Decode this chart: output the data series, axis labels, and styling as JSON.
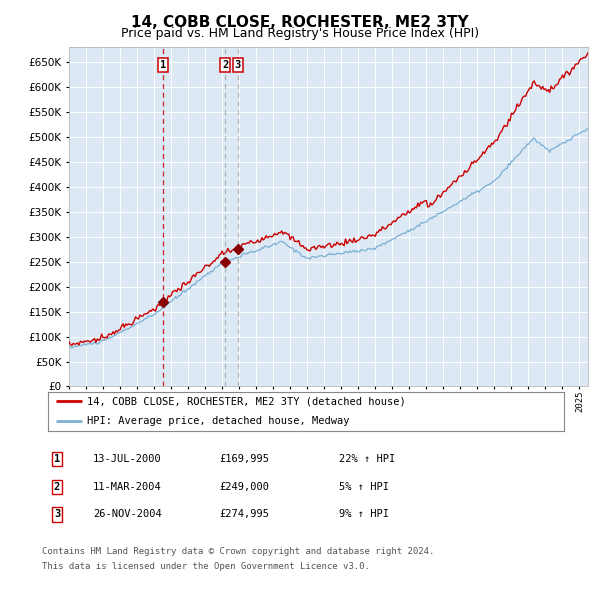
{
  "title": "14, COBB CLOSE, ROCHESTER, ME2 3TY",
  "subtitle": "Price paid vs. HM Land Registry's House Price Index (HPI)",
  "title_fontsize": 11,
  "subtitle_fontsize": 9,
  "background_color": "#dce9f5",
  "fig_background": "#ffffff",
  "grid_color": "#ffffff",
  "red_line_color": "#cc0000",
  "blue_line_color": "#7bafd4",
  "sale_marker_color": "#880000",
  "vline1_color": "#cc0000",
  "vline2_color": "#999999",
  "ylim": [
    0,
    680000
  ],
  "yticks": [
    0,
    50000,
    100000,
    150000,
    200000,
    250000,
    300000,
    350000,
    400000,
    450000,
    500000,
    550000,
    600000,
    650000
  ],
  "xlim_start": 1995.0,
  "xlim_end": 2025.5,
  "sale1_x": 2000.54,
  "sale1_y": 169995,
  "sale2_x": 2004.19,
  "sale2_y": 249000,
  "sale3_x": 2004.91,
  "sale3_y": 274995,
  "legend_line1": "14, COBB CLOSE, ROCHESTER, ME2 3TY (detached house)",
  "legend_line2": "HPI: Average price, detached house, Medway",
  "table_rows": [
    [
      "1",
      "13-JUL-2000",
      "£169,995",
      "22% ↑ HPI"
    ],
    [
      "2",
      "11-MAR-2004",
      "£249,000",
      "5% ↑ HPI"
    ],
    [
      "3",
      "26-NOV-2004",
      "£274,995",
      "9% ↑ HPI"
    ]
  ],
  "footnote1": "Contains HM Land Registry data © Crown copyright and database right 2024.",
  "footnote2": "This data is licensed under the Open Government Licence v3.0."
}
